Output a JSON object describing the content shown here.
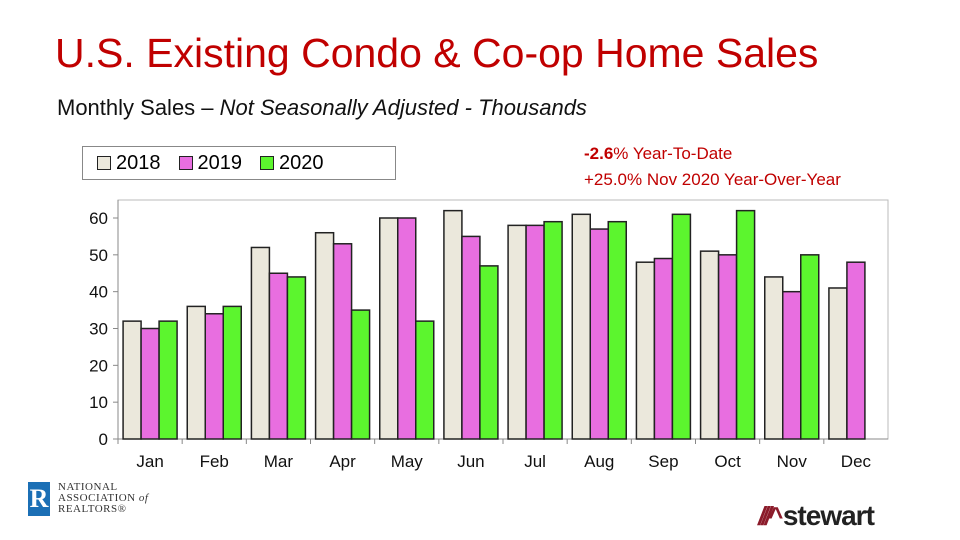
{
  "header": {
    "title": "U.S. Existing Condo & Co-op Home Sales",
    "subtitle_plain": "Monthly Sales – ",
    "subtitle_italic": "Not Seasonally Adjusted - Thousands"
  },
  "annotations": {
    "ytd_value": "-2.6",
    "ytd_text": "% Year-To-Date",
    "yoy_text": "+25.0% Nov 2020 Year-Over-Year"
  },
  "logos": {
    "left": "NATIONAL ASSOCIATION of REALTORS®",
    "right": "stewart"
  },
  "chart_data": {
    "type": "bar",
    "title": "",
    "xlabel": "",
    "ylabel": "",
    "categories": [
      "Jan",
      "Feb",
      "Mar",
      "Apr",
      "May",
      "Jun",
      "Jul",
      "Aug",
      "Sep",
      "Oct",
      "Nov",
      "Dec"
    ],
    "ylim": [
      0,
      65
    ],
    "yticks": [
      0,
      10,
      20,
      30,
      40,
      50,
      60
    ],
    "grid": false,
    "legend": "top-left",
    "series": [
      {
        "name": "2018",
        "color": "#ebe8dc",
        "values": [
          32,
          36,
          52,
          56,
          60,
          62,
          58,
          61,
          48,
          51,
          44,
          41
        ]
      },
      {
        "name": "2019",
        "color": "#e86ee0",
        "values": [
          30,
          34,
          45,
          53,
          60,
          55,
          58,
          57,
          49,
          50,
          40,
          48
        ]
      },
      {
        "name": "2020",
        "color": "#5cf52e",
        "values": [
          32,
          36,
          44,
          35,
          32,
          47,
          59,
          59,
          61,
          62,
          50,
          null
        ]
      }
    ]
  }
}
